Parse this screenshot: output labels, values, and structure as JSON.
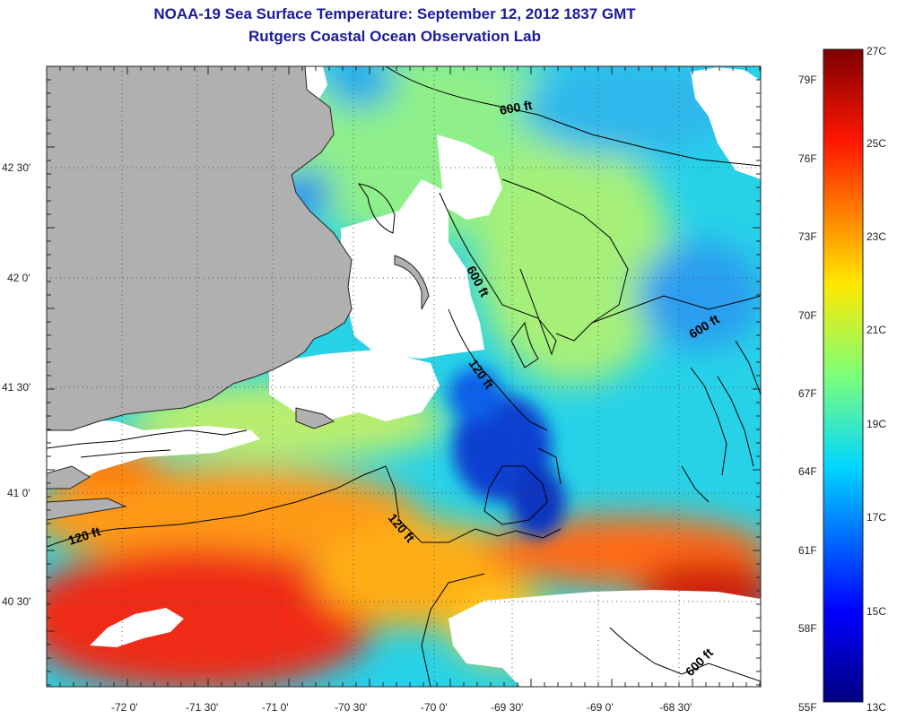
{
  "header": {
    "title": "NOAA-19 Sea Surface Temperature:  September 12, 2012 1837 GMT",
    "subtitle": "Rutgers Coastal Ocean Observation Lab"
  },
  "map": {
    "lon_ticks": [
      "-72 0'",
      "-71 30'",
      "-71 0'",
      "-70 30'",
      "-70 0'",
      "-69 30'",
      "-69 0'",
      "-68 30'"
    ],
    "lat_ticks": [
      "42 30'",
      "42 0'",
      "41 30'",
      "41 0'",
      "40 30'"
    ],
    "contour_labels": [
      "600 ft",
      "600 ft",
      "600 ft",
      "600 ft",
      "120 ft",
      "120 ft",
      "120 ft"
    ],
    "colors": {
      "land": "#b0b0b0",
      "cloud_mask": "#ffffff",
      "water_cold": "#0a3fd0",
      "water_cool": "#27d2e8",
      "water_mild": "#a6f07a",
      "water_warm": "#ff7a10",
      "water_hot": "#d71a10"
    }
  },
  "colorbar": {
    "fahrenheit_labels": [
      "79F",
      "76F",
      "73F",
      "70F",
      "67F",
      "64F",
      "61F",
      "58F",
      "55F"
    ],
    "celsius_labels": [
      "27C",
      "25C",
      "23C",
      "21C",
      "19C",
      "17C",
      "15C",
      "13C"
    ],
    "min_c": 13,
    "max_c": 27
  }
}
